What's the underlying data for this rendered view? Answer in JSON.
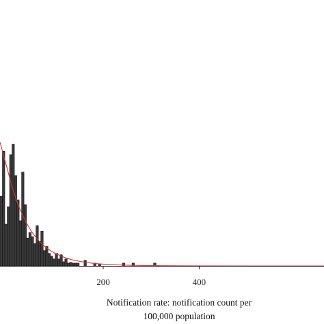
{
  "chart_data": {
    "type": "bar",
    "xlabel_lines": [
      "Notification rate: notification count per",
      "100,000 population"
    ],
    "xlim": [
      -15,
      660
    ],
    "ylim": [
      0,
      240
    ],
    "x_ticks": [
      200,
      400
    ],
    "tick_labels": [
      "200",
      "400"
    ],
    "bin_width": 5,
    "bins": [
      {
        "x": -15,
        "count": 100
      },
      {
        "x": -10,
        "count": 165
      },
      {
        "x": -5,
        "count": 60
      },
      {
        "x": 0,
        "count": 85
      },
      {
        "x": 5,
        "count": 160
      },
      {
        "x": 10,
        "count": 175
      },
      {
        "x": 15,
        "count": 130
      },
      {
        "x": 20,
        "count": 95
      },
      {
        "x": 25,
        "count": 65
      },
      {
        "x": 30,
        "count": 135
      },
      {
        "x": 35,
        "count": 88
      },
      {
        "x": 40,
        "count": 40
      },
      {
        "x": 45,
        "count": 48
      },
      {
        "x": 50,
        "count": 42
      },
      {
        "x": 55,
        "count": 32
      },
      {
        "x": 60,
        "count": 58
      },
      {
        "x": 65,
        "count": 35
      },
      {
        "x": 70,
        "count": 50
      },
      {
        "x": 75,
        "count": 22
      },
      {
        "x": 80,
        "count": 28
      },
      {
        "x": 85,
        "count": 18
      },
      {
        "x": 90,
        "count": 14
      },
      {
        "x": 95,
        "count": 10
      },
      {
        "x": 100,
        "count": 18
      },
      {
        "x": 105,
        "count": 10
      },
      {
        "x": 110,
        "count": 16
      },
      {
        "x": 115,
        "count": 6
      },
      {
        "x": 120,
        "count": 10
      },
      {
        "x": 125,
        "count": 4
      },
      {
        "x": 130,
        "count": 5
      },
      {
        "x": 135,
        "count": 4
      },
      {
        "x": 140,
        "count": 4
      },
      {
        "x": 145,
        "count": 4
      },
      {
        "x": 160,
        "count": 8
      },
      {
        "x": 180,
        "count": 4
      },
      {
        "x": 190,
        "count": 3
      },
      {
        "x": 240,
        "count": 4
      },
      {
        "x": 260,
        "count": 4
      },
      {
        "x": 305,
        "count": 4
      }
    ],
    "fit_curve": [
      [
        -15,
        178
      ],
      [
        0,
        140
      ],
      [
        10,
        114
      ],
      [
        20,
        93
      ],
      [
        30,
        76
      ],
      [
        40,
        62
      ],
      [
        50,
        50
      ],
      [
        60,
        41
      ],
      [
        70,
        33
      ],
      [
        80,
        27
      ],
      [
        90,
        22
      ],
      [
        100,
        18
      ],
      [
        120,
        12
      ],
      [
        140,
        8
      ],
      [
        160,
        5.5
      ],
      [
        180,
        3.6
      ],
      [
        200,
        2.5
      ],
      [
        230,
        1.4
      ],
      [
        260,
        0.8
      ],
      [
        300,
        0.4
      ],
      [
        350,
        0.15
      ],
      [
        400,
        0.06
      ],
      [
        500,
        0.01
      ],
      [
        660,
        0
      ]
    ]
  }
}
